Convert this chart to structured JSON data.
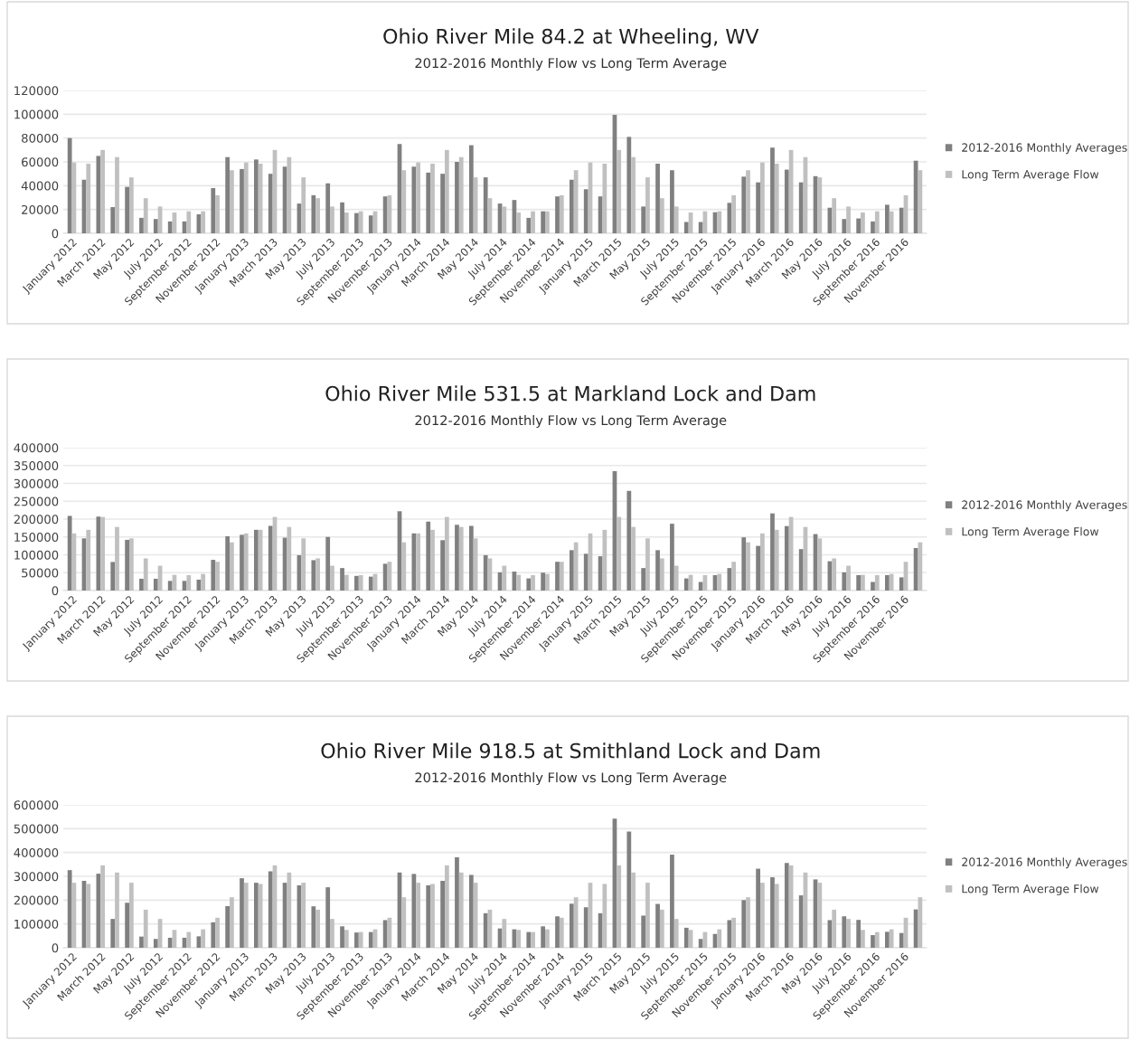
{
  "chart_data": [
    {
      "type": "bar",
      "title": "Ohio River Mile 84.2 at Wheeling, WV",
      "subtitle": "2012-2016 Monthly Flow vs Long Term Average",
      "categories": [
        "January 2012",
        null,
        "March 2012",
        null,
        "May 2012",
        null,
        "July 2012",
        null,
        "September 2012",
        null,
        "November 2012",
        null,
        "January 2013",
        null,
        "March 2013",
        null,
        "May 2013",
        null,
        "July 2013",
        null,
        "September 2013",
        null,
        "November 2013",
        null,
        "January 2014",
        null,
        "March 2014",
        null,
        "May 2014",
        null,
        "July 2014",
        null,
        "September 2014",
        null,
        "November 2014",
        null,
        "January 2015",
        null,
        "March 2015",
        null,
        "May 2015",
        null,
        "July 2015",
        null,
        "September 2015",
        null,
        "November 2015",
        null,
        "January 2016",
        null,
        "March 2016",
        null,
        "May 2016",
        null,
        "July 2016",
        null,
        "September 2016",
        null,
        "November 2016",
        null
      ],
      "series": [
        {
          "name": "2012-2016 Monthly Averages",
          "color": "#808080",
          "values": [
            80000,
            45000,
            65000,
            22000,
            39000,
            13000,
            12000,
            10000,
            10000,
            16000,
            38000,
            64000,
            54000,
            62000,
            50000,
            56000,
            25000,
            32000,
            42000,
            26000,
            17000,
            15000,
            31000,
            75000,
            56000,
            51000,
            50000,
            60000,
            74000,
            47000,
            25000,
            28000,
            13000,
            18500,
            31000,
            45000,
            37000,
            31000,
            99500,
            81000,
            22500,
            58500,
            53000,
            9500,
            9500,
            17700,
            25600,
            47600,
            42800,
            72000,
            53500,
            42800,
            48000,
            21500,
            12000,
            12500,
            10000,
            24000,
            21500,
            61000
          ]
        },
        {
          "name": "Long Term Average Flow",
          "color": "#c0c0c0",
          "values": [
            59500,
            58500,
            70000,
            64000,
            47000,
            29500,
            22500,
            17500,
            18500,
            18500,
            32000,
            53000,
            59500,
            58500,
            70000,
            64000,
            47000,
            29500,
            22500,
            17500,
            18500,
            18500,
            32000,
            53000,
            59500,
            58500,
            70000,
            64000,
            47000,
            29500,
            22500,
            17500,
            18500,
            18500,
            32000,
            53000,
            59500,
            58500,
            70000,
            64000,
            47000,
            29500,
            22500,
            17500,
            18500,
            18500,
            32000,
            53000,
            59500,
            58500,
            70000,
            64000,
            47000,
            29500,
            22500,
            17500,
            18500,
            18500,
            32000,
            53000
          ]
        }
      ],
      "ylim": [
        0,
        120000
      ],
      "yticks": [
        0,
        20000,
        40000,
        60000,
        80000,
        100000,
        120000
      ],
      "grid": "y",
      "legend": "right"
    },
    {
      "type": "bar",
      "title": "Ohio River Mile 531.5 at Markland Lock and Dam",
      "subtitle": "2012-2016 Monthly Flow vs Long Term Average",
      "categories": [
        "January 2012",
        null,
        "March 2012",
        null,
        "May 2012",
        null,
        "July 2012",
        null,
        "September 2012",
        null,
        "November 2012",
        null,
        "January 2013",
        null,
        "March 2013",
        null,
        "May 2013",
        null,
        "July 2013",
        null,
        "September 2013",
        null,
        "November 2013",
        null,
        "January 2014",
        null,
        "March 2014",
        null,
        "May 2014",
        null,
        "July 2014",
        null,
        "September 2014",
        null,
        "November 2014",
        null,
        "January 2015",
        null,
        "March 2015",
        null,
        "May 2015",
        null,
        "July 2015",
        null,
        "September 2015",
        null,
        "November 2015",
        null,
        "January 2016",
        null,
        "March 2016",
        null,
        "May 2016",
        null,
        "July 2016",
        null,
        "September 2016",
        null,
        "November 2016",
        null
      ],
      "series": [
        {
          "name": "2012-2016 Monthly Averages",
          "color": "#808080",
          "values": [
            209000,
            146000,
            207000,
            80000,
            142000,
            33000,
            33000,
            27000,
            27000,
            30500,
            86000,
            152000,
            156000,
            170000,
            181000,
            148000,
            99000,
            85000,
            150000,
            63000,
            41000,
            39000,
            75000,
            222000,
            160000,
            193000,
            141000,
            184000,
            181000,
            99000,
            51000,
            53000,
            34000,
            50000,
            80500,
            113000,
            103000,
            96000,
            334000,
            279000,
            63000,
            113000,
            187000,
            34000,
            24000,
            43000,
            63000,
            149000,
            125000,
            216000,
            180500,
            116000,
            158000,
            82000,
            51000,
            43000,
            24000,
            43000,
            37000,
            119000
          ]
        },
        {
          "name": "Long Term Average Flow",
          "color": "#c0c0c0",
          "values": [
            160000,
            170000,
            206000,
            178000,
            146000,
            90000,
            69500,
            44000,
            43000,
            46500,
            80500,
            135000,
            160000,
            170000,
            206000,
            178000,
            146000,
            90000,
            69500,
            44000,
            43000,
            46500,
            80500,
            135000,
            160000,
            170000,
            206000,
            178000,
            146000,
            90000,
            69500,
            44000,
            43000,
            46500,
            80500,
            135000,
            160000,
            170000,
            206000,
            178000,
            146000,
            90000,
            69500,
            44000,
            43000,
            46500,
            80500,
            135000,
            160000,
            170000,
            206000,
            178000,
            146000,
            90000,
            69500,
            44000,
            43000,
            46500,
            80500,
            135000
          ]
        }
      ],
      "ylim": [
        0,
        400000
      ],
      "yticks": [
        0,
        50000,
        100000,
        150000,
        200000,
        250000,
        300000,
        350000,
        400000
      ],
      "grid": "y",
      "legend": "right"
    },
    {
      "type": "bar",
      "title": "Ohio River Mile 918.5 at Smithland Lock and Dam",
      "subtitle": "2012-2016 Monthly Flow vs Long Term Average",
      "categories": [
        "January 2012",
        null,
        "March 2012",
        null,
        "May 2012",
        null,
        "July 2012",
        null,
        "September 2012",
        null,
        "November 2012",
        null,
        "January 2013",
        null,
        "March 2013",
        null,
        "May 2013",
        null,
        "July 2013",
        null,
        "September 2013",
        null,
        "November 2013",
        null,
        "January 2014",
        null,
        "March 2014",
        null,
        "May 2014",
        null,
        "July 2014",
        null,
        "September 2014",
        null,
        "November 2014",
        null,
        "January 2015",
        null,
        "March 2015",
        null,
        "May 2015",
        null,
        "July 2015",
        null,
        "September 2015",
        null,
        "November 2015",
        null,
        "January 2016",
        null,
        "March 2016",
        null,
        "May 2016",
        null,
        "July 2016",
        null,
        "September 2016",
        null,
        "November 2016",
        null
      ],
      "series": [
        {
          "name": "2012-2016 Monthly Averages",
          "color": "#808080",
          "values": [
            326000,
            281000,
            311000,
            121000,
            189000,
            47000,
            37000,
            42000,
            42000,
            48000,
            107000,
            175000,
            292000,
            273000,
            321000,
            273000,
            262000,
            174000,
            254000,
            90000,
            64000,
            66000,
            116000,
            316000,
            310000,
            262000,
            281000,
            380000,
            306000,
            145000,
            81000,
            77500,
            66000,
            90000,
            132000,
            185000,
            170000,
            145000,
            542000,
            488000,
            135000,
            184000,
            391000,
            84000,
            37000,
            58000,
            116000,
            200000,
            332000,
            296000,
            356000,
            220000,
            287000,
            116000,
            132000,
            117000,
            53000,
            67000,
            62000,
            161000
          ]
        },
        {
          "name": "Long Term Average Flow",
          "color": "#c0c0c0",
          "values": [
            273000,
            268000,
            346000,
            316000,
            273000,
            160000,
            121000,
            75000,
            66000,
            77500,
            126000,
            212000,
            273000,
            268000,
            346000,
            316000,
            273000,
            160000,
            121000,
            75000,
            66000,
            77500,
            126000,
            212000,
            273000,
            268000,
            346000,
            316000,
            273000,
            160000,
            121000,
            75000,
            66000,
            77500,
            126000,
            212000,
            273000,
            268000,
            346000,
            316000,
            273000,
            160000,
            121000,
            75000,
            66000,
            77500,
            126000,
            212000,
            273000,
            268000,
            346000,
            316000,
            273000,
            160000,
            121000,
            75000,
            66000,
            77500,
            126000,
            212000
          ]
        }
      ],
      "ylim": [
        0,
        600000
      ],
      "yticks": [
        0,
        100000,
        200000,
        300000,
        400000,
        500000,
        600000
      ],
      "grid": "y",
      "legend": "right"
    }
  ]
}
